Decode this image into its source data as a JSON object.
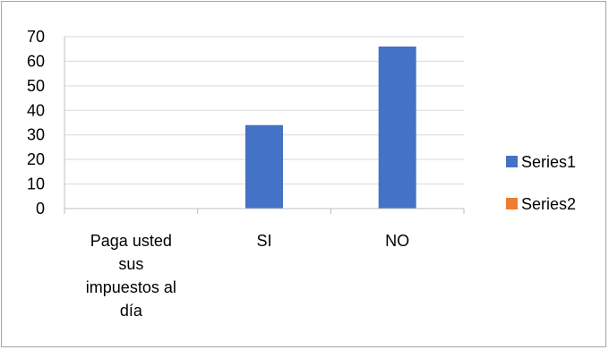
{
  "chart_data": {
    "type": "bar",
    "categories": [
      "Paga usted sus impuestos al día",
      "SI",
      "NO"
    ],
    "category_label_lines": [
      [
        "Paga usted",
        "sus",
        "impuestos al",
        "día"
      ],
      [
        "SI"
      ],
      [
        "NO"
      ]
    ],
    "series": [
      {
        "name": "Series1",
        "values": [
          null,
          34,
          66
        ],
        "color": "#4472c4"
      },
      {
        "name": "Series2",
        "values": [
          null,
          null,
          null
        ],
        "color": "#ed7d31"
      }
    ],
    "y_ticks": [
      "0",
      "10",
      "20",
      "30",
      "40",
      "50",
      "60",
      "70"
    ],
    "ylim": [
      0,
      70
    ],
    "grid": true,
    "legend_position": "right",
    "title": "",
    "xlabel": "",
    "ylabel": ""
  }
}
